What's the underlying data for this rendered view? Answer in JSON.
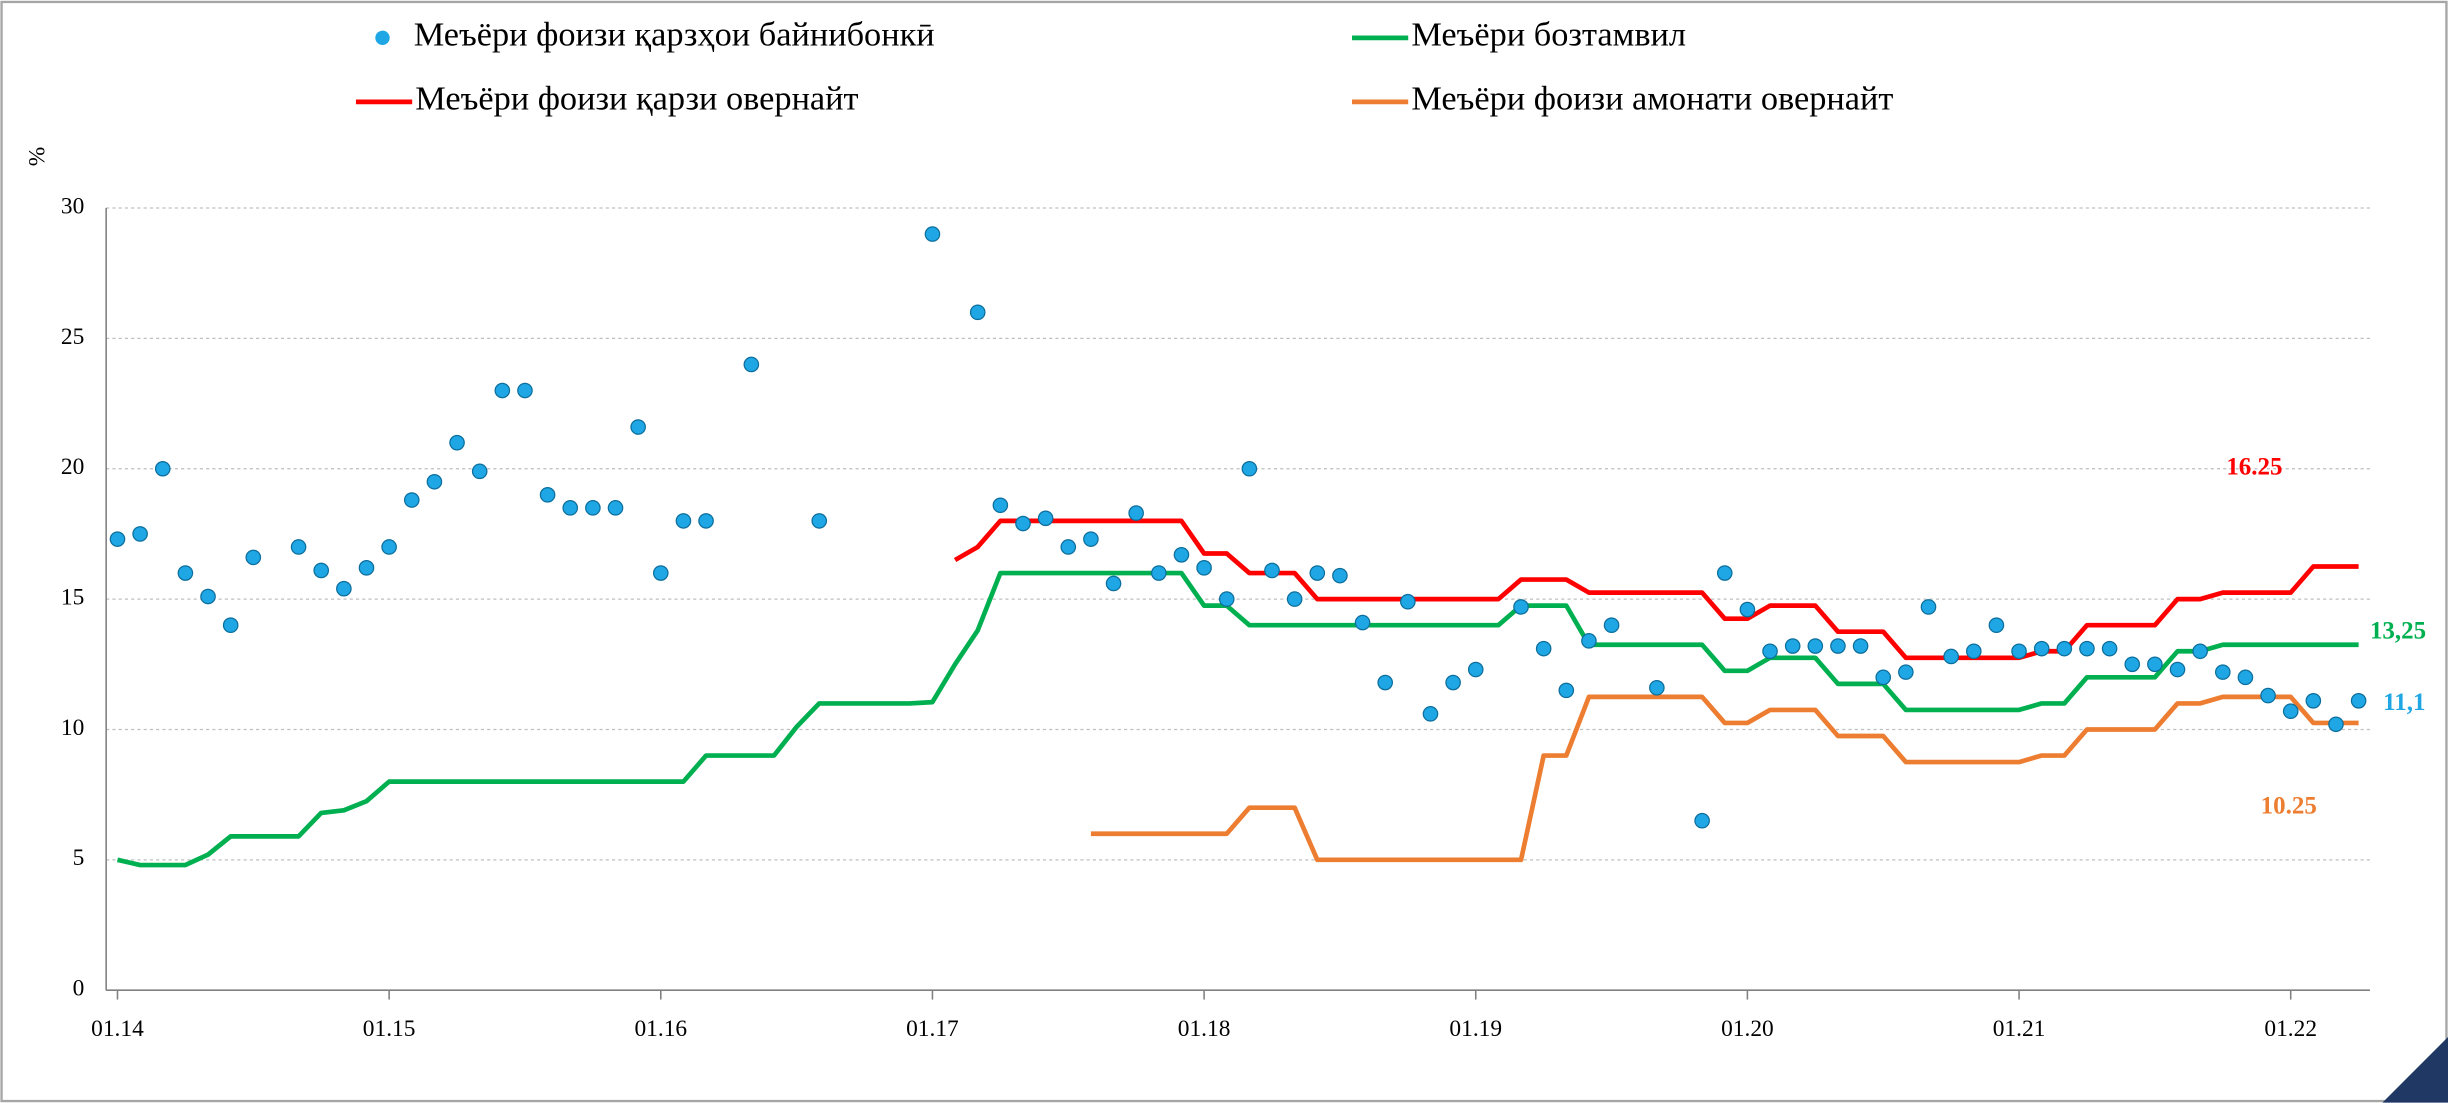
{
  "chart_data": {
    "type": "line",
    "y_label": "%",
    "x": [
      0,
      1,
      2,
      3,
      4,
      5,
      6,
      7,
      8,
      9,
      10,
      11,
      12,
      13,
      14,
      15,
      16,
      17,
      18,
      19,
      20,
      21,
      22,
      23,
      24,
      25,
      26,
      27,
      28,
      29,
      30,
      31,
      32,
      33,
      34,
      35,
      36,
      37,
      38,
      39,
      40,
      41,
      42,
      43,
      44,
      45,
      46,
      47,
      48,
      49,
      50,
      51,
      52,
      53,
      54,
      55,
      56,
      57,
      58,
      59,
      60,
      61,
      62,
      63,
      64,
      65,
      66,
      67,
      68,
      69,
      70,
      71,
      72,
      73,
      74,
      75,
      76,
      77,
      78,
      79,
      80,
      81,
      82,
      83,
      84,
      85,
      86,
      87,
      88,
      89,
      90,
      91,
      92,
      93,
      94,
      95,
      96,
      97,
      98,
      99
    ],
    "xlim": [
      -0.5,
      99.5
    ],
    "xticks": [
      {
        "value": 0,
        "label": "01.14"
      },
      {
        "value": 12,
        "label": "01.15"
      },
      {
        "value": 24,
        "label": "01.16"
      },
      {
        "value": 36,
        "label": "01.17"
      },
      {
        "value": 48,
        "label": "01.18"
      },
      {
        "value": 60,
        "label": "01.19"
      },
      {
        "value": 72,
        "label": "01.20"
      },
      {
        "value": 84,
        "label": "01.21"
      },
      {
        "value": 96,
        "label": "01.22"
      }
    ],
    "ylim": [
      0,
      30
    ],
    "yticks": [
      0,
      5,
      10,
      15,
      20,
      25,
      30
    ],
    "grid": true,
    "series": [
      {
        "name": "Меъёри фоизи  қарзҳои байнибонкӣ",
        "type": "scatter",
        "color": "#1ea7e4",
        "values": [
          17.3,
          17.5,
          20,
          16,
          15.1,
          14,
          16.6,
          null,
          17,
          16.1,
          15.4,
          16.2,
          17,
          18.8,
          19.5,
          21,
          19.9,
          23,
          23,
          19,
          18.5,
          18.5,
          18.5,
          21.6,
          16,
          18,
          18,
          null,
          24,
          null,
          null,
          18,
          null,
          null,
          null,
          null,
          29,
          null,
          26,
          18.6,
          17.9,
          18.1,
          17,
          17.3,
          15.6,
          18.3,
          16,
          16.7,
          16.2,
          15,
          20,
          16.1,
          15,
          16,
          15.9,
          14.1,
          11.8,
          14.9,
          10.6,
          11.8,
          12.3,
          null,
          14.7,
          13.1,
          11.5,
          13.4,
          14,
          null,
          11.6,
          null,
          6.5,
          16,
          14.6,
          13,
          13.2,
          13.2,
          13.2,
          13.2,
          12,
          12.2,
          14.7,
          12.8,
          13,
          14,
          13,
          13.1,
          13.1,
          13.1,
          13.1,
          12.5,
          12.5,
          12.3,
          13,
          12.2,
          12,
          11.3,
          10.7,
          11.1,
          10.2,
          11.1
        ]
      },
      {
        "name": "Меъёри бозтамвил",
        "type": "line",
        "color": "#00b050",
        "values": [
          5,
          4.8,
          4.8,
          4.8,
          5.2,
          5.9,
          5.9,
          5.9,
          5.9,
          6.8,
          6.9,
          7.25,
          8,
          8,
          8,
          8,
          8,
          8,
          8,
          8,
          8,
          8,
          8,
          8,
          8,
          8,
          9,
          9,
          9,
          9,
          10.1,
          11,
          11,
          11,
          11,
          11,
          11.05,
          12.5,
          13.8,
          16,
          16,
          16,
          16,
          16,
          16,
          16,
          16,
          16,
          14.75,
          14.75,
          14,
          14,
          14,
          14,
          14,
          14,
          14,
          14,
          14,
          14,
          14,
          14,
          14.75,
          14.75,
          14.75,
          13.25,
          13.25,
          13.25,
          13.25,
          13.25,
          13.25,
          12.25,
          12.25,
          12.75,
          12.75,
          12.75,
          11.75,
          11.75,
          11.75,
          10.75,
          10.75,
          10.75,
          10.75,
          10.75,
          10.75,
          11,
          11,
          12,
          12,
          12,
          12,
          13,
          13,
          13.25,
          13.25,
          13.25,
          13.25,
          13.25,
          13.25,
          13.25
        ]
      },
      {
        "name": "Меъёри фоизи қарзи овернайт",
        "type": "line",
        "color": "#ff0000",
        "values": [
          null,
          null,
          null,
          null,
          null,
          null,
          null,
          null,
          null,
          null,
          null,
          null,
          null,
          null,
          null,
          null,
          null,
          null,
          null,
          null,
          null,
          null,
          null,
          null,
          null,
          null,
          null,
          null,
          null,
          null,
          null,
          null,
          null,
          null,
          null,
          null,
          null,
          16.5,
          17,
          18,
          18,
          18,
          18,
          18,
          18,
          18,
          18,
          18,
          16.75,
          16.75,
          16,
          16,
          16,
          15,
          15,
          15,
          15,
          15,
          15,
          15,
          15,
          15,
          15.75,
          15.75,
          15.75,
          15.25,
          15.25,
          15.25,
          15.25,
          15.25,
          15.25,
          14.25,
          14.25,
          14.75,
          14.75,
          14.75,
          13.75,
          13.75,
          13.75,
          12.75,
          12.75,
          12.75,
          12.75,
          12.75,
          12.75,
          13,
          13,
          14,
          14,
          14,
          14,
          15,
          15,
          15.25,
          15.25,
          15.25,
          15.25,
          16.25,
          16.25,
          16.25
        ]
      },
      {
        "name": "Меъёри фоизи амонати овернайт",
        "type": "line",
        "color": "#ed7d31",
        "values": [
          null,
          null,
          null,
          null,
          null,
          null,
          null,
          null,
          null,
          null,
          null,
          null,
          null,
          null,
          null,
          null,
          null,
          null,
          null,
          null,
          null,
          null,
          null,
          null,
          null,
          null,
          null,
          null,
          null,
          null,
          null,
          null,
          null,
          null,
          null,
          null,
          null,
          null,
          null,
          null,
          null,
          null,
          null,
          6,
          6,
          6,
          6,
          6,
          6,
          6,
          7,
          7,
          7,
          5,
          5,
          5,
          5,
          5,
          5,
          5,
          5,
          5,
          5,
          9,
          9,
          11.25,
          11.25,
          11.25,
          11.25,
          11.25,
          11.25,
          10.25,
          10.25,
          10.75,
          10.75,
          10.75,
          9.75,
          9.75,
          9.75,
          8.75,
          8.75,
          8.75,
          8.75,
          8.75,
          8.75,
          9,
          9,
          10,
          10,
          10,
          10,
          11,
          11,
          11.25,
          11.25,
          11.25,
          11.25,
          10.25,
          10.25,
          10.25
        ]
      }
    ],
    "annotations": [
      {
        "text": "16.25",
        "color": "#ff0000"
      },
      {
        "text": "13,25",
        "color": "#00b050"
      },
      {
        "text": "11,1",
        "color": "#1ea7e4"
      },
      {
        "text": "10.25",
        "color": "#ed7d31"
      }
    ]
  }
}
